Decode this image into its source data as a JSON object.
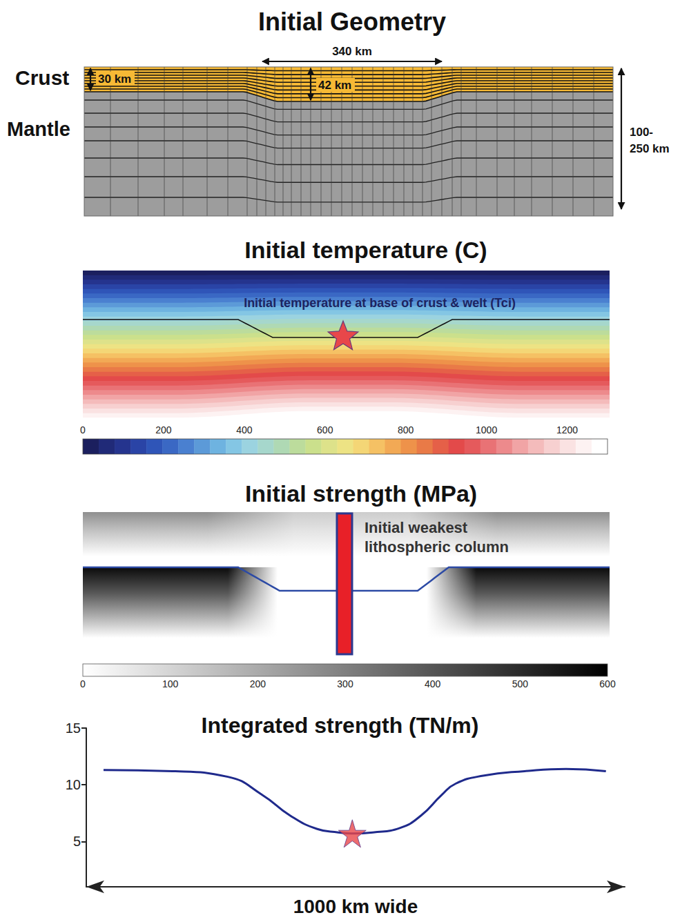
{
  "panels": [
    {
      "title": "Initial Geometry",
      "crust_label": "Crust",
      "mantle_label": "Mantle",
      "crust_thickness": "30 km",
      "welt_thickness": "42 km",
      "welt_width": "340 km",
      "model_depth": [
        "100-",
        "250 km"
      ]
    },
    {
      "title": "Initial temperature (C)",
      "annotation": "Initial temperature at base of crust & welt (Tci)",
      "colorbar": {
        "range": [
          0,
          1300
        ],
        "ticks": [
          0,
          200,
          400,
          600,
          800,
          1000,
          1200
        ],
        "colors": [
          "#1b1f5e",
          "#202a78",
          "#25348e",
          "#2a44a6",
          "#2f55b8",
          "#3a68c4",
          "#4a80d0",
          "#5c9ad8",
          "#6eb3e0",
          "#84c6e4",
          "#9bd3e0",
          "#a6d7cc",
          "#afd9b4",
          "#bcdc9c",
          "#cbe08c",
          "#dde28a",
          "#ede384",
          "#f4d676",
          "#f5c164",
          "#f2a955",
          "#ee924a",
          "#e97a47",
          "#e56048",
          "#e34a4a",
          "#e55a5c",
          "#e97275",
          "#ed8a8c",
          "#f1a4a5",
          "#f4bbbb",
          "#f7d0d0",
          "#fae2e2",
          "#fdf2f2",
          "#ffffff"
        ]
      }
    },
    {
      "title": "Initial strength (MPa)",
      "annotation": [
        "Initial weakest",
        "lithospheric column"
      ],
      "colorbar": {
        "range": [
          0,
          600
        ],
        "ticks": [
          0,
          100,
          200,
          300,
          400,
          500,
          600
        ],
        "colors": [
          "#ffffff",
          "#000000"
        ]
      }
    }
  ],
  "chart_data": {
    "type": "line",
    "title": "Integrated strength (TN/m)",
    "xlabel": "1000 km wide",
    "x": [
      32,
      160,
      263,
      327,
      378,
      429,
      468,
      494,
      532,
      583,
      622,
      660,
      686,
      737,
      814,
      891,
      965
    ],
    "values": [
      11.3,
      11.2,
      10.7,
      9.1,
      7.3,
      6.1,
      5.8,
      5.7,
      5.8,
      6.2,
      7.3,
      9.1,
      10.1,
      10.8,
      11.2,
      11.4,
      11.2
    ],
    "color": "#1f2a8c",
    "xlim": [
      0,
      1000
    ],
    "ylim": [
      1,
      15
    ],
    "yticks": [
      5,
      10,
      15
    ],
    "tick_labels": "y",
    "grid": false,
    "highlight": {
      "x": 494,
      "y": 5.7
    }
  }
}
